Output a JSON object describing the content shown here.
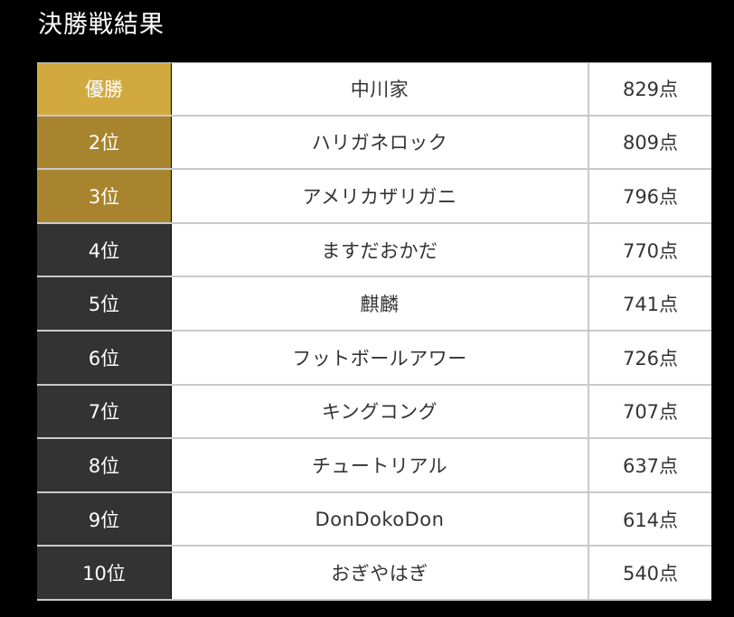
{
  "title": "決勝戦結果",
  "results": [
    {
      "rank": "優勝",
      "name": "中川家",
      "score": "829点"
    },
    {
      "rank": "2位",
      "name": "ハリガネロック",
      "score": "809点"
    },
    {
      "rank": "3位",
      "name": "アメリカザリガニ",
      "score": "796点"
    },
    {
      "rank": "4位",
      "name": "ますだおかだ",
      "score": "770点"
    },
    {
      "rank": "5位",
      "name": "麒麟",
      "score": "741点"
    },
    {
      "rank": "6位",
      "name": "フットボールアワー",
      "score": "726点"
    },
    {
      "rank": "7位",
      "name": "キングコング",
      "score": "707点"
    },
    {
      "rank": "8位",
      "name": "チュートリアル",
      "score": "637点"
    },
    {
      "rank": "9位",
      "name": "DonDokoDon",
      "score": "614点"
    },
    {
      "rank": "10位",
      "name": "おぎやはぎ",
      "score": "540点"
    }
  ],
  "colors": {
    "background": "#000000",
    "winner": "#d1a93f",
    "podium": "#a8842e",
    "rank_plain": "#333333",
    "cell": "#ffffff",
    "border": "#c9c9c9"
  }
}
